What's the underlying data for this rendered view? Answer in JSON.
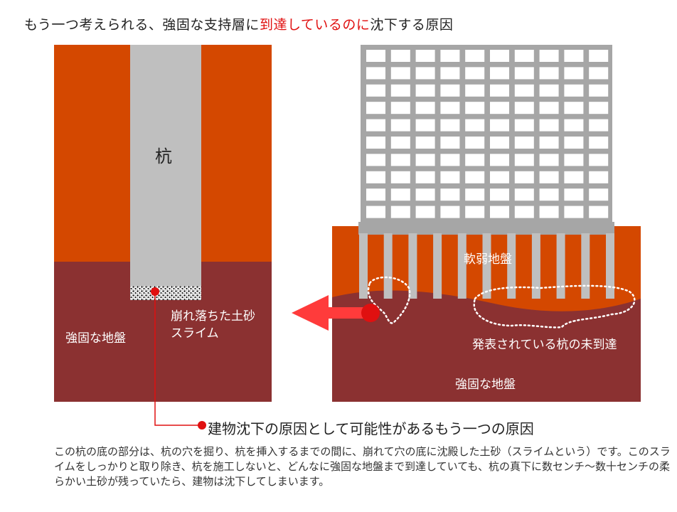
{
  "title": {
    "pre": "もう一つ考えられる、強固な支持層に",
    "highlight": "到達しているのに",
    "post": "沈下する原因",
    "highlight_color": "#e01010"
  },
  "left_panel": {
    "pile_label": "杭",
    "slime_label_line1": "崩れ落ちた土砂",
    "slime_label_line2": "スライム",
    "ground_label": "強固な地盤"
  },
  "right_panel": {
    "soft_label": "軟弱地盤",
    "unreached_label": "発表されている杭の未到達",
    "ground_label": "強固な地盤"
  },
  "callout": {
    "text": "建物沈下の原因として可能性があるもう一つの原因"
  },
  "description": "この杭の底の部分は、杭の穴を掘り、杭を挿入するまでの間に、崩れて穴の底に沈殿した土砂（スライムという）です。このスライムをしっかりと取り除き、杭を施工しないと、どんなに強固な地盤まで到達していても、杭の真下に数センチ～数十センチの柔らかい土砂が残っていたら、建物は沈下してしまいます。",
  "colors": {
    "soft_soil": "#d44800",
    "firm_soil": "#8b3131",
    "pile": "#bfbfbf",
    "building": "#a6a6a6",
    "arrow": "#ff3b3b",
    "accent_red": "#e01010"
  }
}
